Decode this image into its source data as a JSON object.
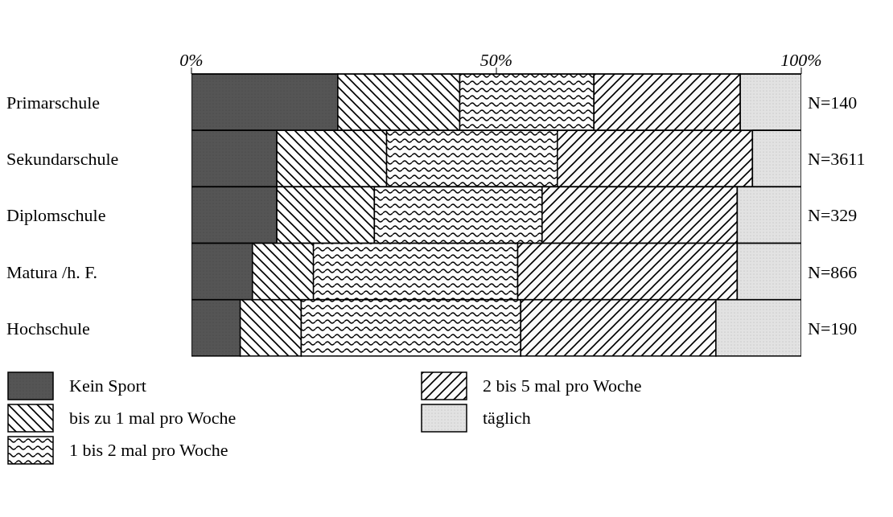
{
  "chart_data": {
    "type": "bar",
    "orientation": "horizontal",
    "stacked": true,
    "categories": [
      "Primarschule",
      "Sekundarschule",
      "Diplomschule",
      "Matura /h. F.",
      "Hochschule"
    ],
    "series": [
      {
        "name": "Kein Sport",
        "color": "#555555",
        "values": [
          24,
          14,
          14,
          10,
          8
        ]
      },
      {
        "name": "bis zu 1 mal pro Woche",
        "color": "#ffffff",
        "values": [
          20,
          18,
          16,
          10,
          10
        ]
      },
      {
        "name": "1 bis 2 mal pro Woche",
        "color": "#fdfdfd",
        "values": [
          22,
          28,
          27.5,
          33.5,
          36
        ]
      },
      {
        "name": "2 bis 5 mal pro Woche",
        "color": "#fbfbfb",
        "values": [
          24,
          32,
          32,
          36,
          32
        ]
      },
      {
        "name": "täglich",
        "color": "#e2e2e2",
        "values": [
          10,
          8,
          10.5,
          10.5,
          14
        ]
      }
    ],
    "xlim": [
      0,
      100
    ],
    "xticks": [
      {
        "value": 0,
        "label": "0%"
      },
      {
        "value": 50,
        "label": "50%"
      },
      {
        "value": 100,
        "label": "100%"
      }
    ],
    "annotations": [
      "N=140",
      "N=3611",
      "N=329",
      "N=866",
      "N=190"
    ],
    "grid": false,
    "legend": "bottom"
  }
}
